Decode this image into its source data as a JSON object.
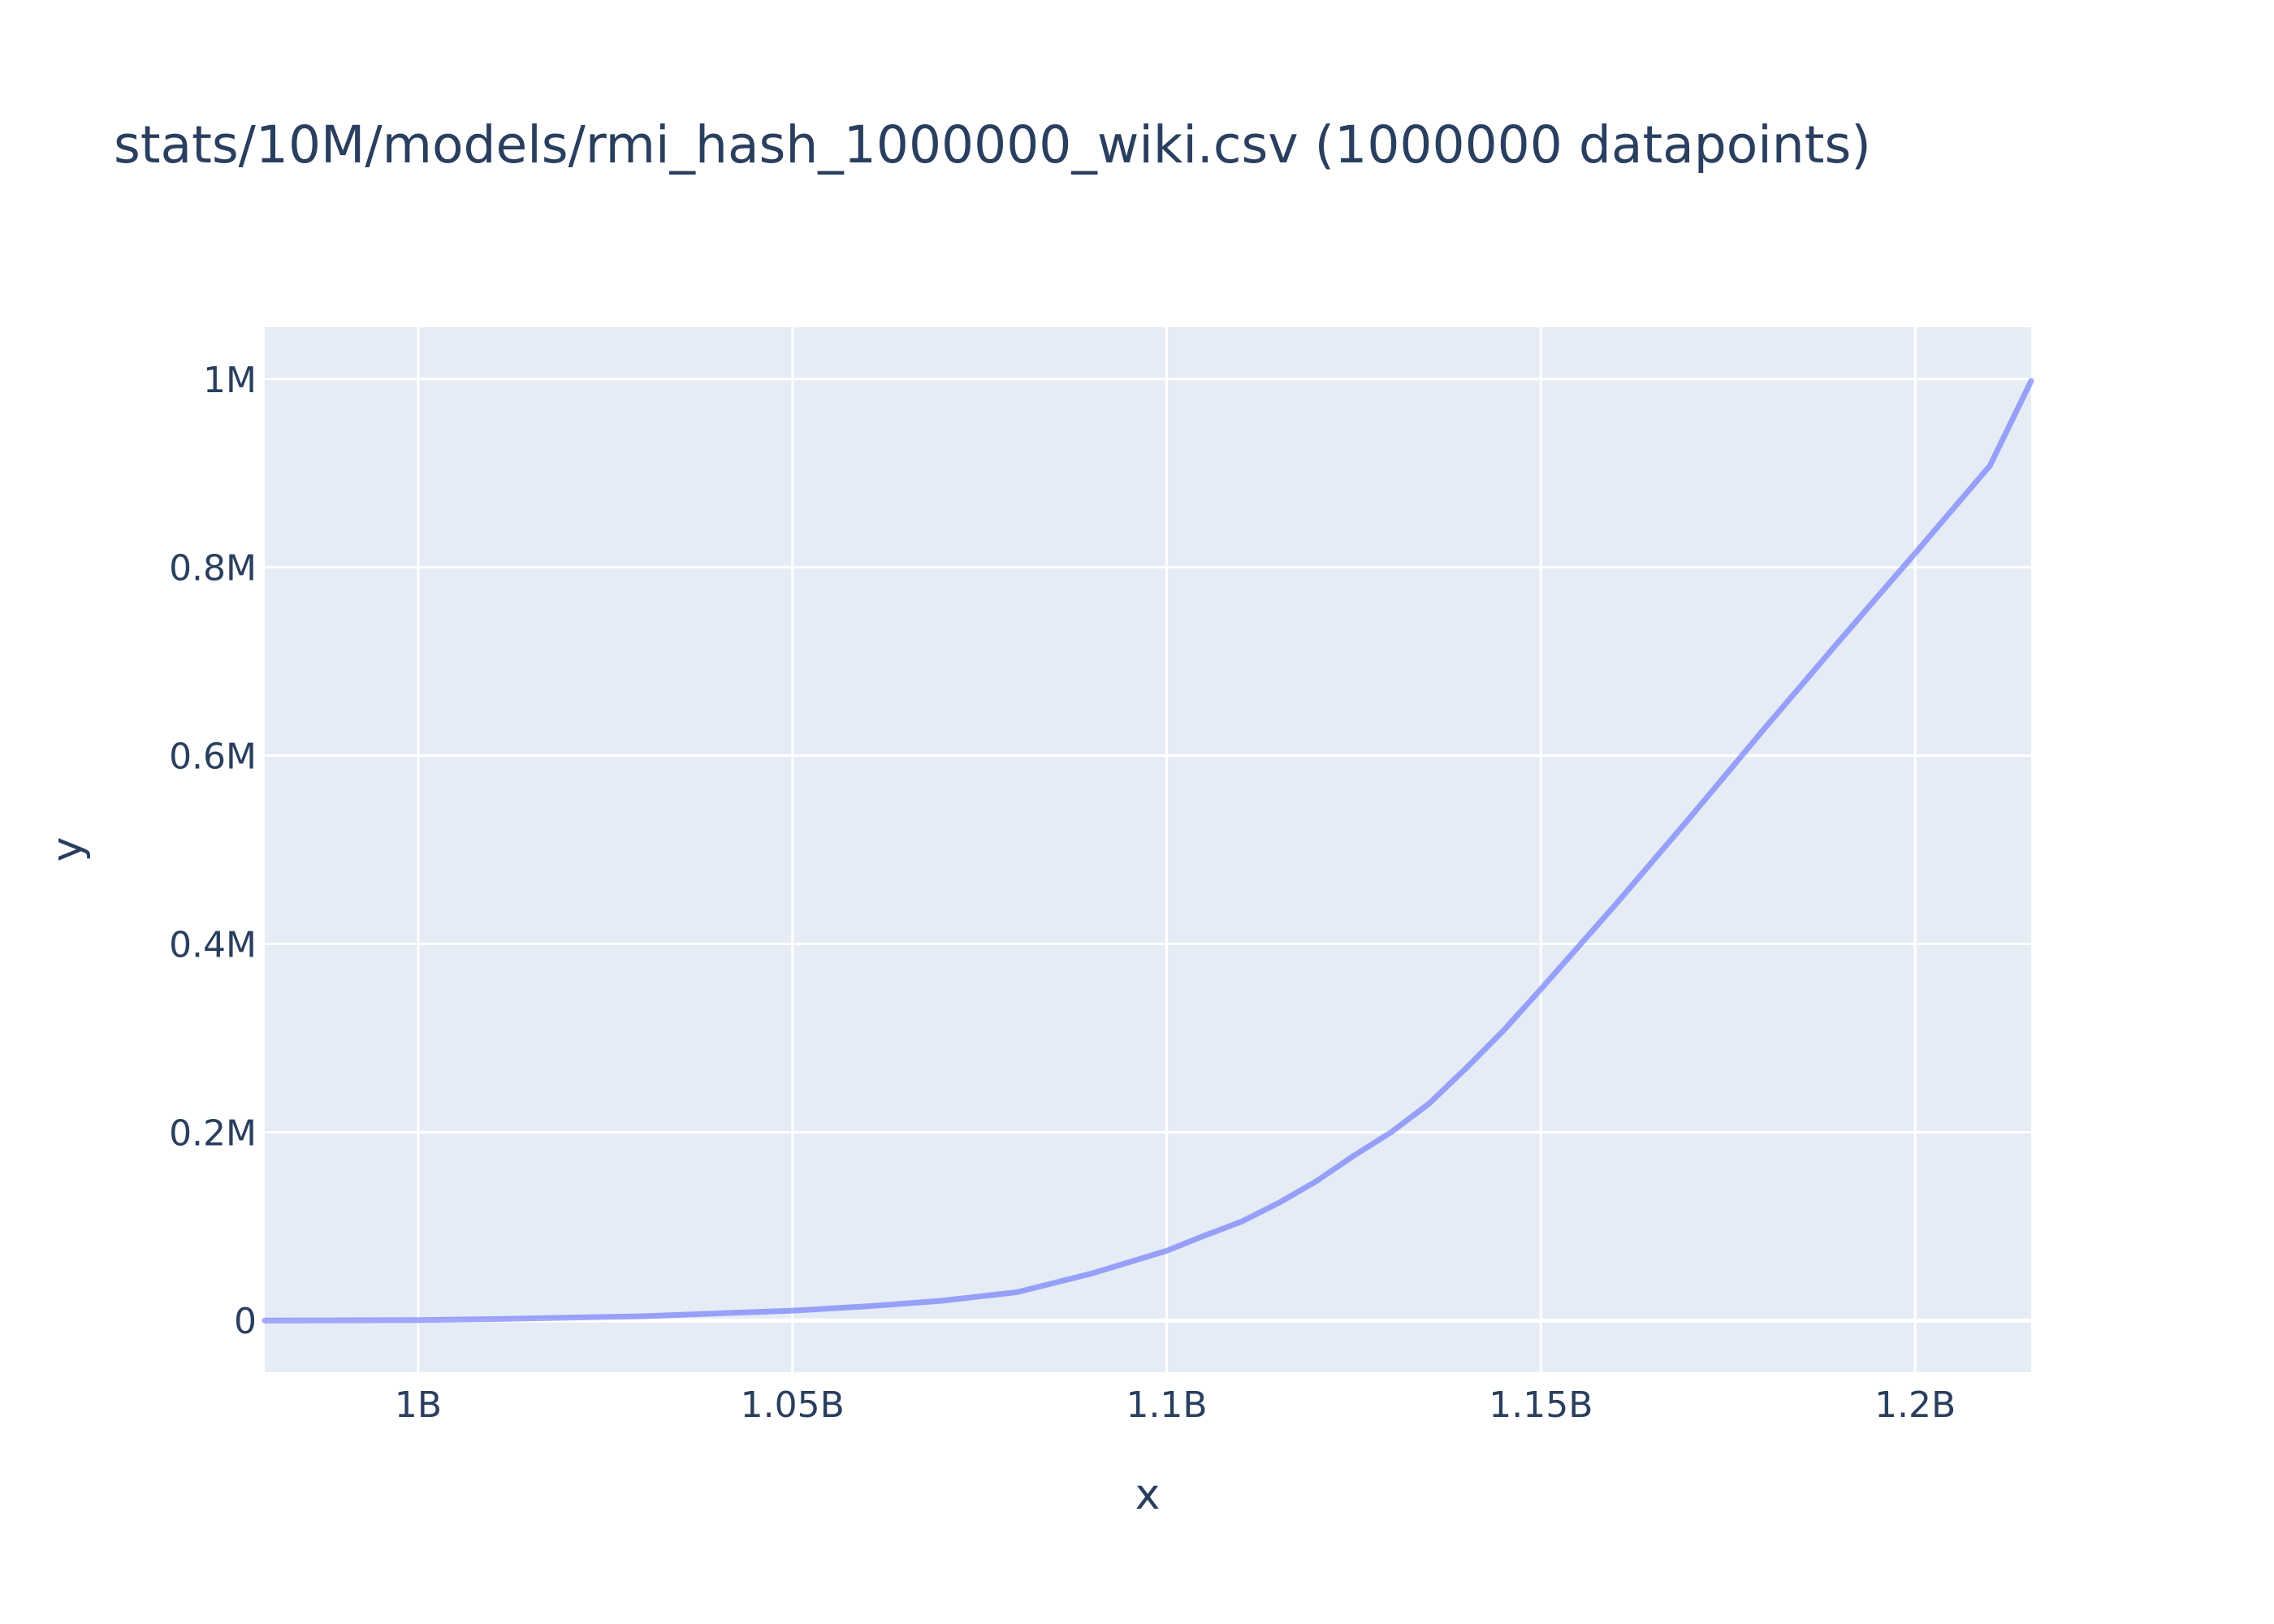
{
  "chart_data": {
    "type": "line",
    "title": "stats/10M/models/rmi_hash_1000000_wiki.csv (1000000 datapoints)",
    "xlabel": "x",
    "ylabel": "y",
    "xlim": [
      979500000,
      1215500000
    ],
    "ylim": [
      -55000,
      1055000
    ],
    "x_ticks": [
      {
        "value": 1000000000,
        "label": "1B"
      },
      {
        "value": 1050000000,
        "label": "1.05B"
      },
      {
        "value": 1100000000,
        "label": "1.1B"
      },
      {
        "value": 1150000000,
        "label": "1.15B"
      },
      {
        "value": 1200000000,
        "label": "1.2B"
      }
    ],
    "y_ticks": [
      {
        "value": 0,
        "label": "0"
      },
      {
        "value": 200000,
        "label": "0.2M"
      },
      {
        "value": 400000,
        "label": "0.4M"
      },
      {
        "value": 600000,
        "label": "0.6M"
      },
      {
        "value": 800000,
        "label": "0.8M"
      },
      {
        "value": 1000000,
        "label": "1M"
      }
    ],
    "grid": true,
    "colors": {
      "background": "#e5ecf6",
      "grid": "#ffffff",
      "line": "#636efa"
    },
    "series": [
      {
        "x": [
          979500000,
          990000000,
          1000000000,
          1010000000,
          1020000000,
          1030000000,
          1040000000,
          1050000000,
          1060000000,
          1070000000,
          1080000000,
          1090000000,
          1100000000,
          1105000000,
          1110000000,
          1115000000,
          1120000000,
          1125000000,
          1130000000,
          1135000000,
          1140000000,
          1145000000,
          1150000000,
          1155000000,
          1160000000,
          1170000000,
          1180000000,
          1190000000,
          1200000000,
          1210000000,
          1215500000
        ],
        "y": [
          0,
          200,
          500,
          1500,
          3000,
          4500,
          7500,
          10500,
          15000,
          21000,
          30000,
          50000,
          74000,
          90000,
          105000,
          125000,
          148000,
          175000,
          200000,
          230000,
          268000,
          308000,
          352000,
          397000,
          442000,
          535000,
          630000,
          723000,
          815000,
          908000,
          998000
        ]
      }
    ]
  }
}
